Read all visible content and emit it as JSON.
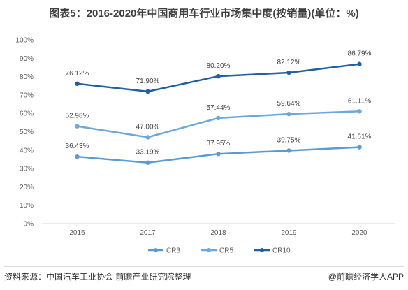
{
  "title": "图表5：2016-2020年中国商用车行业市场集中度(按销量)(单位：%)",
  "source": "资料来源：中国汽车工业协会 前瞻产业研究院整理",
  "brand": "@前瞻经济学人APP",
  "chart_data": {
    "type": "line",
    "title": "图表5：2016-2020年中国商用车行业市场集中度(按销量)(单位：%)",
    "xlabel": "",
    "ylabel": "",
    "categories": [
      "2016",
      "2017",
      "2018",
      "2019",
      "2020"
    ],
    "ylim": [
      0,
      100
    ],
    "yticks": [
      "0%",
      "10%",
      "20%",
      "30%",
      "40%",
      "50%",
      "60%",
      "70%",
      "80%",
      "90%",
      "100%"
    ],
    "grid": false,
    "legend_position": "bottom",
    "series": [
      {
        "name": "CR3",
        "color": "#5b9bd5",
        "values": [
          36.43,
          33.19,
          37.95,
          39.75,
          41.61
        ],
        "labels": [
          "36.43%",
          "33.19%",
          "37.95%",
          "39.75%",
          "41.61%"
        ]
      },
      {
        "name": "CR5",
        "color": "#6aa8e0",
        "values": [
          52.98,
          47.0,
          57.44,
          59.64,
          61.11
        ],
        "labels": [
          "52.98%",
          "47.00%",
          "57.44%",
          "59.64%",
          "61.11%"
        ]
      },
      {
        "name": "CR10",
        "color": "#1f5fa8",
        "values": [
          76.12,
          71.9,
          80.2,
          82.12,
          86.79
        ],
        "labels": [
          "76.12%",
          "71.90%",
          "80.20%",
          "82.12%",
          "86.79%"
        ]
      }
    ]
  }
}
